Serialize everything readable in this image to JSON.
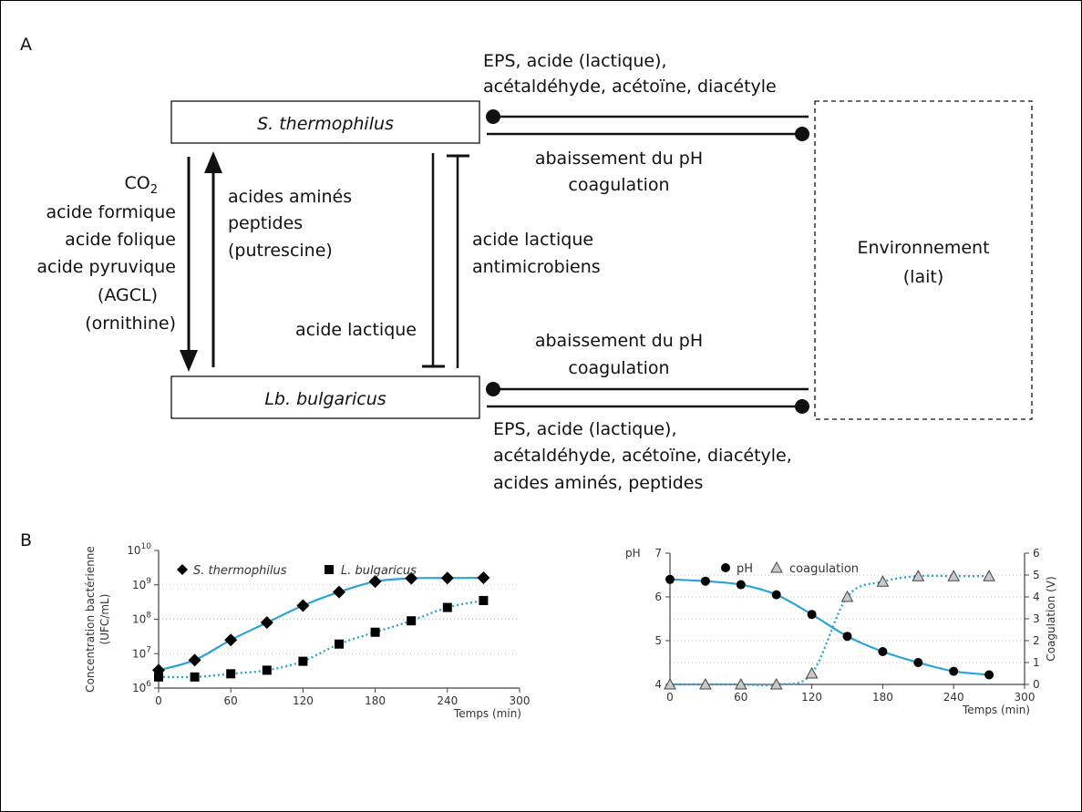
{
  "panel_a": {
    "label": "A",
    "node_st": "S. thermophilus",
    "node_lb": "Lb. bulgaricus",
    "node_env_1": "Environnement",
    "node_env_2": "(lait)",
    "left_list": [
      "CO",
      "acide formique",
      "acide folique",
      "acide pyruvique",
      "(AGCL)",
      "(ornithine)"
    ],
    "co2_subscript": "2",
    "up_list": [
      "acides aminés",
      "peptides",
      "(putrescine)"
    ],
    "inhib_left": "acide lactique",
    "inhib_right": [
      "acide lactique",
      "antimicrobiens"
    ],
    "st_env_top": [
      "EPS, acide (lactique),",
      "acétaldéhyde, acétoïne, diacétyle"
    ],
    "st_env_bottom": [
      "abaissement du pH",
      "coagulation"
    ],
    "lb_env_top": [
      "abaissement du pH",
      "coagulation"
    ],
    "lb_env_bottom": [
      "EPS, acide (lactique),",
      "acétaldéhyde, acétoïne, diacétyle,",
      "acides aminés, peptides"
    ]
  },
  "panel_b": {
    "label": "B"
  },
  "chart_data": [
    {
      "type": "scatter",
      "ylabel": [
        "Concentration bactérienne",
        "(UFC/mL)"
      ],
      "xlabel": "Temps (min)",
      "xlim": [
        0,
        300
      ],
      "xticks": [
        "0",
        "60",
        "120",
        "180",
        "240",
        "300"
      ],
      "ylim_log10": [
        6,
        10
      ],
      "yticks": [
        {
          "base": "10",
          "exp": "6"
        },
        {
          "base": "10",
          "exp": "7"
        },
        {
          "base": "10",
          "exp": "8"
        },
        {
          "base": "10",
          "exp": "9"
        },
        {
          "base": "10",
          "exp": "10"
        }
      ],
      "legend": [
        "S. thermophilus",
        "L. bulgaricus"
      ],
      "legend_position": "top",
      "grid": "horizontal dotted",
      "curve_color": "#2aa3d8",
      "series": [
        {
          "name": "S. thermophilus",
          "marker": "diamond",
          "fit": "solid",
          "x": [
            0,
            30,
            60,
            90,
            120,
            150,
            180,
            210,
            240,
            270
          ],
          "y": [
            3300000.0,
            6500000.0,
            25000000.0,
            80000000.0,
            250000000.0,
            620000000.0,
            1250000000.0,
            1550000000.0,
            1580000000.0,
            1600000000.0
          ]
        },
        {
          "name": "L. bulgaricus",
          "marker": "square",
          "fit": "dotted",
          "x": [
            0,
            30,
            60,
            90,
            120,
            150,
            180,
            210,
            240,
            270
          ],
          "y": [
            2100000.0,
            2100000.0,
            2600000.0,
            3300000.0,
            6000000.0,
            19000000.0,
            42000000.0,
            90000000.0,
            220000000.0,
            350000000.0
          ]
        }
      ]
    },
    {
      "type": "scatter",
      "ylabel_left": "pH",
      "ylabel_right": "Coagulation (V)",
      "xlabel": "Temps (min)",
      "xlim": [
        0,
        300
      ],
      "xticks": [
        "0",
        "60",
        "120",
        "180",
        "240",
        "300"
      ],
      "ylim_left": [
        4,
        7
      ],
      "yticks_left": [
        "4",
        "5",
        "6",
        "7"
      ],
      "ylim_right": [
        0,
        6
      ],
      "yticks_right": [
        "0",
        "1",
        "2",
        "3",
        "4",
        "5",
        "6"
      ],
      "legend": [
        "pH",
        "coagulation"
      ],
      "legend_position": "top",
      "grid": "horizontal dotted",
      "curve_color": "#2aa3d8",
      "series": [
        {
          "name": "pH",
          "marker": "circle",
          "fit": "solid",
          "axis": "left",
          "x": [
            0,
            30,
            60,
            90,
            120,
            150,
            180,
            210,
            240,
            270
          ],
          "y": [
            6.4,
            6.36,
            6.28,
            6.05,
            5.6,
            5.1,
            4.75,
            4.5,
            4.3,
            4.22
          ]
        },
        {
          "name": "coagulation",
          "marker": "triangle",
          "fit": "dotted",
          "axis": "right",
          "x": [
            0,
            30,
            60,
            90,
            120,
            150,
            180,
            210,
            240,
            270
          ],
          "y": [
            0,
            0,
            0,
            0,
            0.5,
            4.0,
            4.7,
            4.95,
            4.95,
            4.95
          ]
        }
      ]
    }
  ]
}
